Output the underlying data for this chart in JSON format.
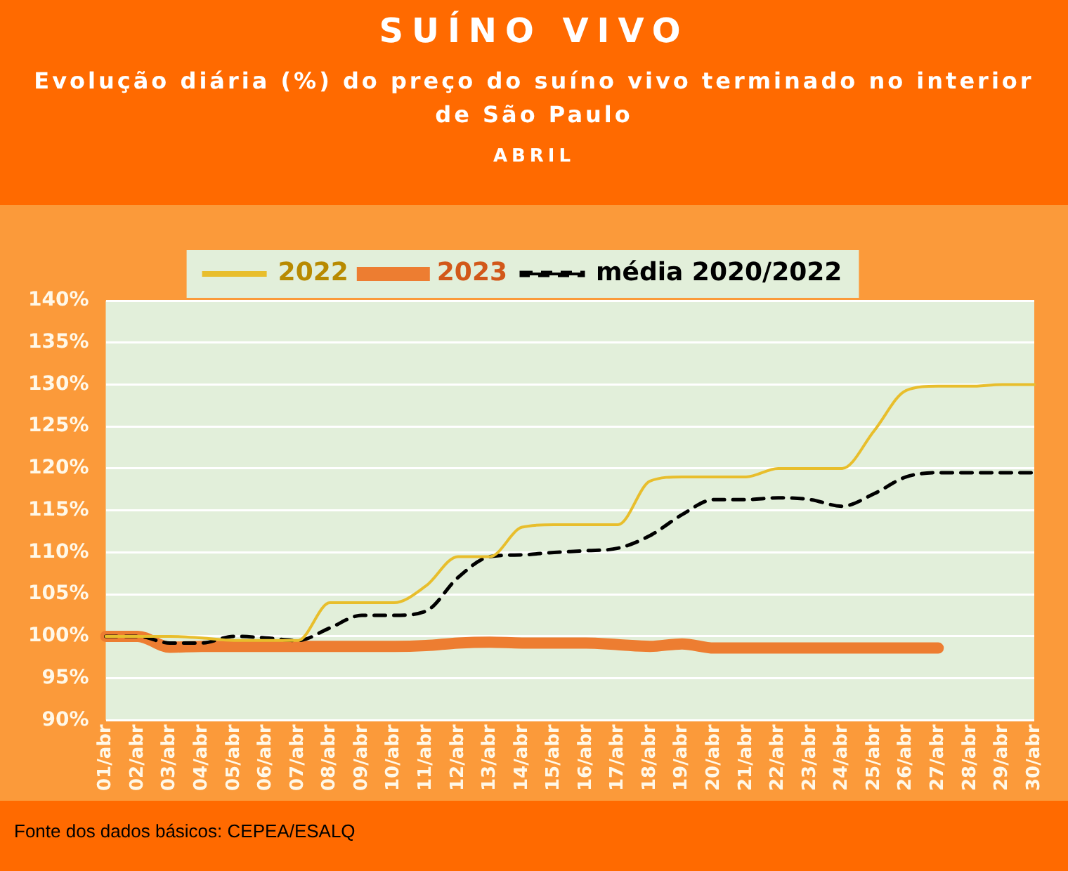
{
  "chart_data": {
    "type": "line",
    "title": "SUÍNO VIVO",
    "subtitle": "Evolução diária (%) do preço do suíno vivo terminado no interior de São Paulo",
    "annotations": [
      "ABRIL",
      "Fonte dos dados básicos: CEPEA/ESALQ"
    ],
    "categories": [
      "01/abr",
      "02/abr",
      "03/abr",
      "04/abr",
      "05/abr",
      "06/abr",
      "07/abr",
      "08/abr",
      "09/abr",
      "10/abr",
      "11/abr",
      "12/abr",
      "13/abr",
      "14/abr",
      "15/abr",
      "16/abr",
      "17/abr",
      "18/abr",
      "19/abr",
      "20/abr",
      "21/abr",
      "22/abr",
      "23/abr",
      "24/abr",
      "25/abr",
      "26/abr",
      "27/abr",
      "28/abr",
      "29/abr",
      "30/abr"
    ],
    "series": [
      {
        "name": "2022",
        "color": "#e8be2c",
        "line_style": "solid",
        "values": [
          100,
          100,
          100,
          99.8,
          99.5,
          99.5,
          99.5,
          104,
          104,
          104,
          106,
          109.5,
          109.5,
          113,
          113.3,
          113.3,
          113.3,
          118.5,
          119,
          119,
          119,
          120,
          120,
          120,
          124.5,
          129.3,
          129.8,
          129.8,
          130,
          130
        ]
      },
      {
        "name": "2023",
        "color": "#ed7d31",
        "line_style": "solid",
        "values": [
          100,
          100,
          98.7,
          98.8,
          98.8,
          98.8,
          98.8,
          98.8,
          98.8,
          98.8,
          98.9,
          99.2,
          99.3,
          99.2,
          99.2,
          99.2,
          99.0,
          98.8,
          99.1,
          98.6,
          98.6,
          98.6,
          98.6,
          98.6,
          98.6,
          98.6,
          98.6,
          null,
          null,
          null
        ]
      },
      {
        "name": "média 2020/2022",
        "color": "#000000",
        "line_style": "dashed",
        "values": [
          100,
          100,
          99.2,
          99.2,
          100,
          99.8,
          99.5,
          101,
          102.5,
          102.5,
          103,
          107,
          109.5,
          109.7,
          110,
          110.2,
          110.5,
          112,
          114.5,
          116.3,
          116.3,
          116.5,
          116.3,
          115.5,
          117,
          119,
          119.5,
          119.5,
          119.5,
          119.5
        ]
      }
    ],
    "ylim": [
      90,
      140
    ],
    "yticks": [
      {
        "value": 90,
        "label": "90%"
      },
      {
        "value": 95,
        "label": "95%"
      },
      {
        "value": 100,
        "label": "100%"
      },
      {
        "value": 105,
        "label": "105%"
      },
      {
        "value": 110,
        "label": "110%"
      },
      {
        "value": 115,
        "label": "115%"
      },
      {
        "value": 120,
        "label": "120%"
      },
      {
        "value": 125,
        "label": "125%"
      },
      {
        "value": 130,
        "label": "130%"
      },
      {
        "value": 135,
        "label": "135%"
      },
      {
        "value": 140,
        "label": "140%"
      }
    ],
    "grid": "y",
    "legend": "top",
    "marker": "none"
  }
}
